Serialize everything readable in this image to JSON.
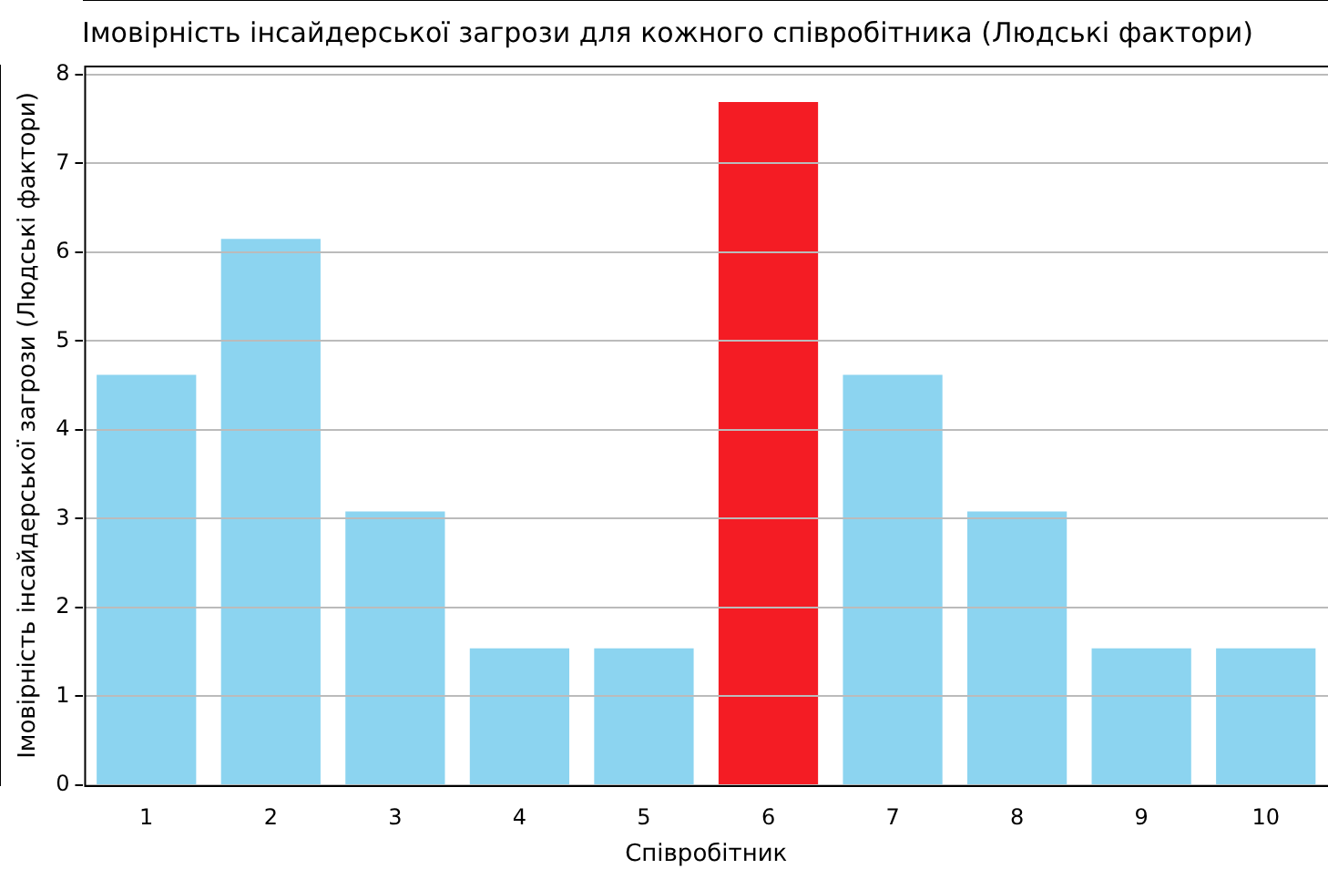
{
  "chart_data": {
    "type": "bar",
    "title": "Імовірність інсайдерської загрози для кожного співробітника (Людські фактори)",
    "xlabel": "Співробітник",
    "ylabel": "Імовірність інсайдерської загрози (Людські фактори)",
    "categories": [
      "1",
      "2",
      "3",
      "4",
      "5",
      "6",
      "7",
      "8",
      "9",
      "10"
    ],
    "values": [
      4.62,
      6.15,
      3.08,
      1.54,
      1.54,
      7.69,
      4.62,
      3.08,
      1.54,
      1.54
    ],
    "colors": [
      "#8cd4f0",
      "#8cd4f0",
      "#8cd4f0",
      "#8cd4f0",
      "#8cd4f0",
      "#f41c24",
      "#8cd4f0",
      "#8cd4f0",
      "#8cd4f0",
      "#8cd4f0"
    ],
    "ylim": [
      0,
      8.1
    ],
    "yticks": [
      0,
      1,
      2,
      3,
      4,
      5,
      6,
      7,
      8
    ],
    "grid": "y",
    "legend": false
  }
}
